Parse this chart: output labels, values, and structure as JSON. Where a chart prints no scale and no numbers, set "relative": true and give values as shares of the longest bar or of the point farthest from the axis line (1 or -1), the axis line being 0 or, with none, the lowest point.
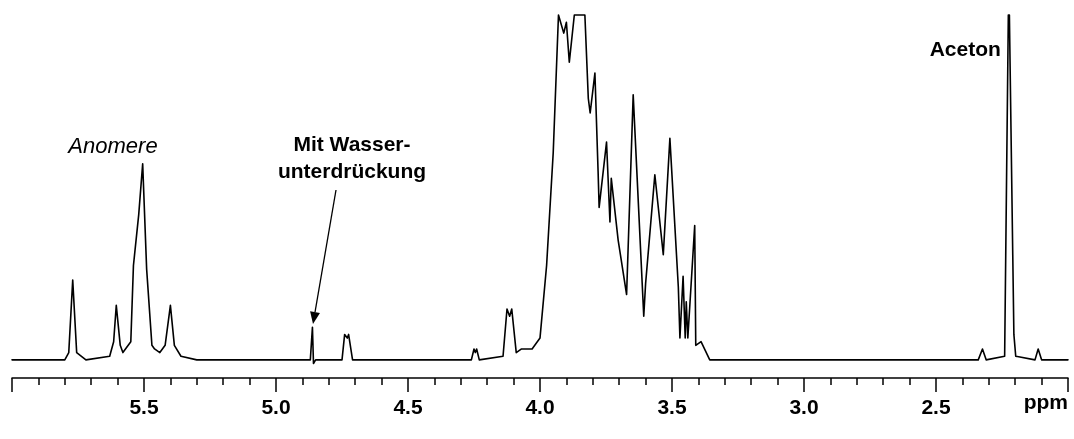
{
  "chart_data": {
    "type": "line",
    "relative": true,
    "xlabel": "ppm",
    "marker": "none",
    "grid": false,
    "xlim": [
      6.0,
      2.0
    ],
    "xticks": [
      {
        "value": 6.0,
        "label": null
      },
      {
        "value": 5.9,
        "label": null
      },
      {
        "value": 5.8,
        "label": null
      },
      {
        "value": 5.7,
        "label": null
      },
      {
        "value": 5.6,
        "label": null
      },
      5.5,
      {
        "value": 5.4,
        "label": null
      },
      {
        "value": 5.3,
        "label": null
      },
      {
        "value": 5.2,
        "label": null
      },
      {
        "value": 5.1,
        "label": null
      },
      {
        "value": 5.0,
        "label": "5.0"
      },
      {
        "value": 4.9,
        "label": null
      },
      {
        "value": 4.8,
        "label": null
      },
      {
        "value": 4.7,
        "label": null
      },
      {
        "value": 4.6,
        "label": null
      },
      4.5,
      {
        "value": 4.4,
        "label": null
      },
      {
        "value": 4.3,
        "label": null
      },
      {
        "value": 4.2,
        "label": null
      },
      {
        "value": 4.1,
        "label": null
      },
      {
        "value": 4.0,
        "label": "4.0"
      },
      {
        "value": 3.9,
        "label": null
      },
      {
        "value": 3.8,
        "label": null
      },
      {
        "value": 3.7,
        "label": null
      },
      {
        "value": 3.6,
        "label": null
      },
      3.5,
      {
        "value": 3.4,
        "label": null
      },
      {
        "value": 3.3,
        "label": null
      },
      {
        "value": 3.2,
        "label": null
      },
      {
        "value": 3.1,
        "label": null
      },
      {
        "value": 3.0,
        "label": "3.0"
      },
      {
        "value": 2.9,
        "label": null
      },
      {
        "value": 2.8,
        "label": null
      },
      {
        "value": 2.7,
        "label": null
      },
      {
        "value": 2.6,
        "label": null
      },
      2.5,
      {
        "value": 2.4,
        "label": null
      },
      {
        "value": 2.3,
        "label": null
      },
      {
        "value": 2.2,
        "label": null
      },
      {
        "value": 2.1,
        "label": null
      },
      {
        "value": 2.0,
        "label": null
      }
    ],
    "annotations": [
      "Anomere",
      "Mit Wasser-\nunterdrückung",
      {
        "text": "Aceton",
        "x": 2.224,
        "y": 1
      }
    ],
    "series": [
      {
        "color": "#000000",
        "x": [
          6.0,
          5.8,
          5.785,
          5.77,
          5.755,
          5.72,
          5.63,
          5.615,
          5.605,
          5.59,
          5.58,
          5.55,
          5.54,
          5.52,
          5.505,
          5.49,
          5.47,
          5.46,
          5.44,
          5.42,
          5.4,
          5.385,
          5.36,
          5.3,
          5.24,
          5.1,
          4.87,
          4.862,
          4.858,
          4.85,
          4.75,
          4.74,
          4.73,
          4.725,
          4.71,
          4.5,
          4.26,
          4.25,
          4.245,
          4.24,
          4.23,
          4.14,
          4.125,
          4.115,
          4.107,
          4.09,
          4.07,
          4.03,
          4.0,
          3.975,
          3.95,
          3.93,
          3.91,
          3.9,
          3.889,
          3.87,
          3.83,
          3.817,
          3.81,
          3.792,
          3.78,
          3.776,
          3.748,
          3.735,
          3.73,
          3.704,
          3.672,
          3.647,
          3.607,
          3.6,
          3.565,
          3.533,
          3.508,
          3.476,
          3.47,
          3.458,
          3.45,
          3.446,
          3.44,
          3.414,
          3.41,
          3.39,
          3.357,
          2.5,
          2.34,
          2.324,
          2.31,
          2.24,
          2.226,
          2.222,
          2.205,
          2.198,
          2.125,
          2.113,
          2.1,
          2.0
        ],
        "values": [
          0.05,
          0.05,
          0.07,
          0.27,
          0.07,
          0.05,
          0.06,
          0.1,
          0.2,
          0.09,
          0.07,
          0.1,
          0.31,
          0.45,
          0.59,
          0.3,
          0.09,
          0.08,
          0.07,
          0.09,
          0.2,
          0.09,
          0.06,
          0.05,
          0.05,
          0.05,
          0.05,
          0.14,
          0.04,
          0.05,
          0.05,
          0.12,
          0.11,
          0.12,
          0.05,
          0.05,
          0.05,
          0.08,
          0.07,
          0.08,
          0.05,
          0.06,
          0.19,
          0.17,
          0.19,
          0.07,
          0.08,
          0.08,
          0.11,
          0.31,
          0.62,
          1,
          0.95,
          0.98,
          0.87,
          1,
          1,
          0.77,
          0.73,
          0.84,
          0.57,
          0.47,
          0.65,
          0.43,
          0.55,
          0.38,
          0.23,
          0.78,
          0.17,
          0.26,
          0.56,
          0.34,
          0.66,
          0.25,
          0.11,
          0.28,
          0.11,
          0.21,
          0.11,
          0.42,
          0.09,
          0.1,
          0.05,
          0.05,
          0.05,
          0.08,
          0.05,
          0.06,
          1,
          1,
          0.12,
          0.06,
          0.05,
          0.08,
          0.05,
          0.05
        ]
      }
    ]
  }
}
